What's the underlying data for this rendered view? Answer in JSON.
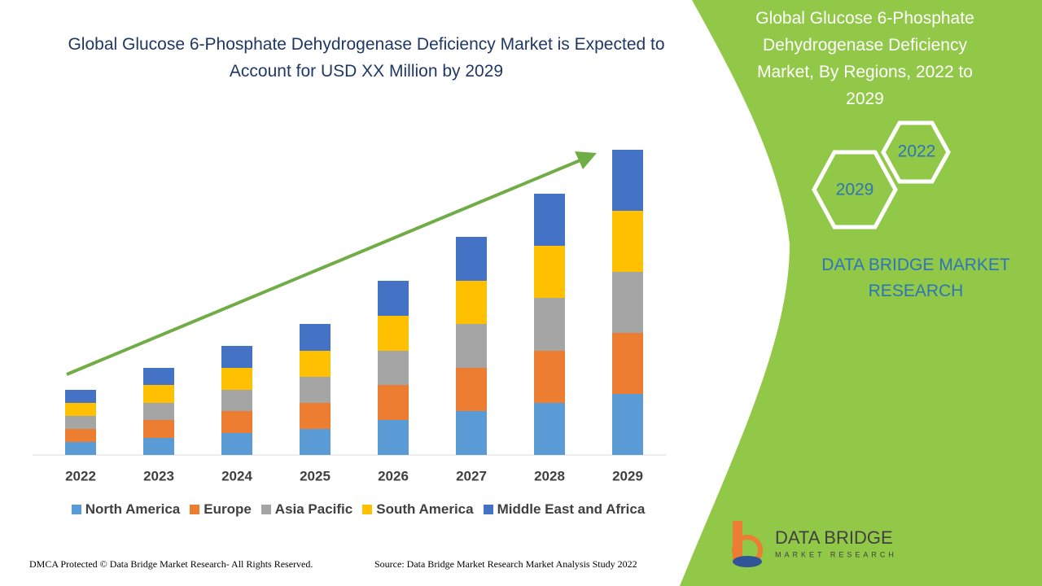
{
  "chart_data": {
    "type": "bar",
    "stacked": true,
    "title": "Global Glucose 6-Phosphate Dehydrogenase Deficiency Market is Expected to Account for USD XX Million by 2029",
    "categories": [
      "2022",
      "2023",
      "2024",
      "2025",
      "2026",
      "2027",
      "2028",
      "2029"
    ],
    "series": [
      {
        "name": "North America",
        "color": "#5b9bd5",
        "values": [
          16,
          21,
          27,
          32,
          43,
          54,
          64,
          75
        ]
      },
      {
        "name": "Europe",
        "color": "#ed7d31",
        "values": [
          16,
          22,
          27,
          32,
          43,
          53,
          64,
          75
        ]
      },
      {
        "name": "Asia Pacific",
        "color": "#a5a5a5",
        "values": [
          16,
          21,
          26,
          32,
          42,
          54,
          65,
          75
        ]
      },
      {
        "name": "South America",
        "color": "#ffc000",
        "values": [
          16,
          22,
          27,
          32,
          43,
          53,
          64,
          75
        ]
      },
      {
        "name": "Middle East and Africa",
        "color": "#4472c4",
        "values": [
          16,
          21,
          27,
          33,
          43,
          54,
          64,
          75
        ]
      }
    ],
    "trend_color": "#70ad47"
  },
  "panel": {
    "title": "Global Glucose 6-Phosphate Dehydrogenase Deficiency Market, By Regions, 2022 to 2029",
    "hex_top": "2022",
    "hex_bottom": "2029",
    "brand": "DATA BRIDGE MARKET RESEARCH"
  },
  "logo": {
    "name": "DATA BRIDGE",
    "tagline": "MARKET RESEARCH"
  },
  "footer": {
    "left": "DMCA Protected © Data Bridge Market Research- All Rights Reserved.",
    "right": "Source: Data Bridge Market Research Market Analysis Study 2022"
  }
}
